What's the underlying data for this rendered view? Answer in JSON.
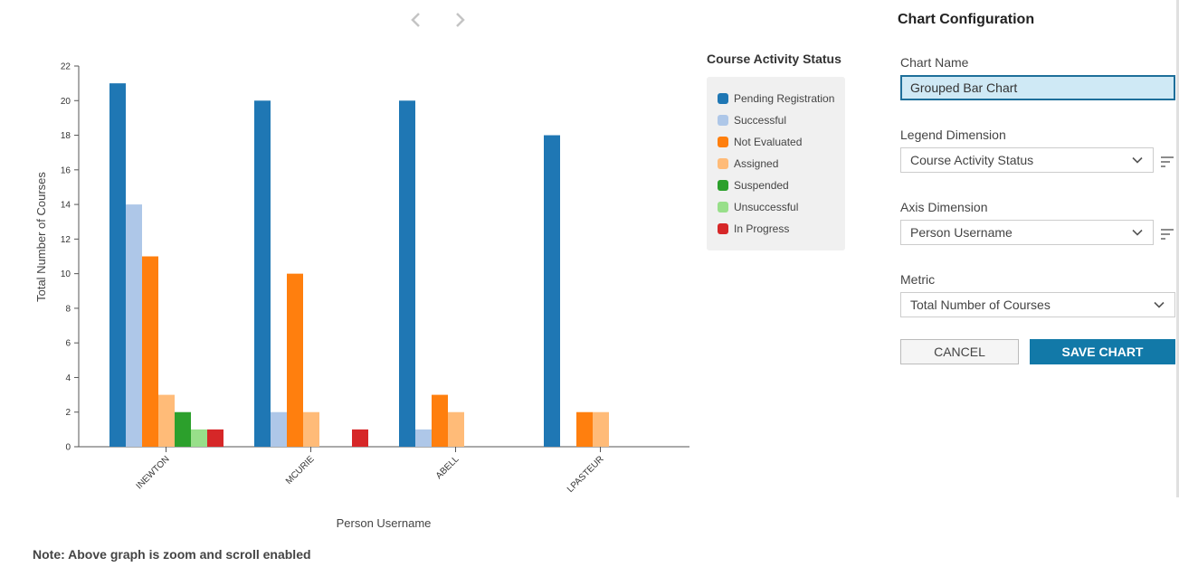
{
  "chart_data": {
    "type": "bar",
    "xlabel": "Person Username",
    "ylabel": "Total Number of Courses",
    "ylim": [
      0,
      22
    ],
    "yticks": [
      0,
      2,
      4,
      6,
      8,
      10,
      12,
      14,
      16,
      18,
      20,
      22
    ],
    "categories": [
      "INEWTON",
      "MCURIE",
      "ABELL",
      "LPASTEUR"
    ],
    "legend_title": "Course Activity Status",
    "legend_position": "right",
    "grid": false,
    "series": [
      {
        "name": "Pending Registration",
        "color": "#1f77b4",
        "values": [
          21,
          20,
          20,
          18
        ]
      },
      {
        "name": "Successful",
        "color": "#aec7e8",
        "values": [
          14,
          2,
          1,
          0
        ]
      },
      {
        "name": "Not Evaluated",
        "color": "#ff7f0e",
        "values": [
          11,
          10,
          3,
          2
        ]
      },
      {
        "name": "Assigned",
        "color": "#ffbb78",
        "values": [
          3,
          2,
          2,
          2
        ]
      },
      {
        "name": "Suspended",
        "color": "#2ca02c",
        "values": [
          2,
          0,
          0,
          0
        ]
      },
      {
        "name": "Unsuccessful",
        "color": "#98df8a",
        "values": [
          1,
          0,
          0,
          0
        ]
      },
      {
        "name": "In Progress",
        "color": "#d62728",
        "values": [
          1,
          1,
          0,
          0
        ]
      }
    ]
  },
  "nav": {
    "prev_icon": "chevron-left-icon",
    "next_icon": "chevron-right-icon"
  },
  "note": "Note: Above graph is zoom and scroll enabled",
  "config": {
    "title": "Chart Configuration",
    "chart_name_label": "Chart Name",
    "chart_name_value": "Grouped Bar Chart",
    "legend_dimension_label": "Legend Dimension",
    "legend_dimension_value": "Course Activity Status",
    "axis_dimension_label": "Axis Dimension",
    "axis_dimension_value": "Person Username",
    "metric_label": "Metric",
    "metric_value": "Total Number of Courses",
    "cancel_label": "CANCEL",
    "save_label": "SAVE CHART",
    "accent_color": "#1279a8"
  }
}
